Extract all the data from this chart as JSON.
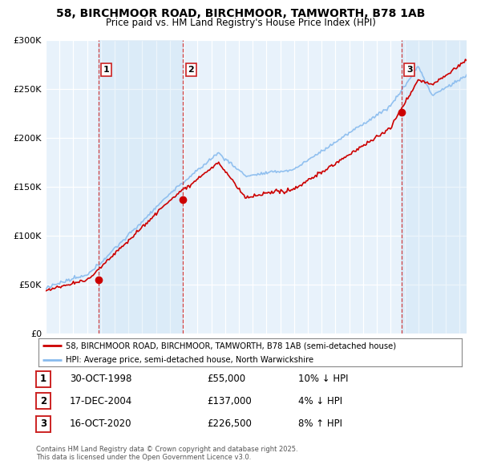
{
  "title": "58, BIRCHMOOR ROAD, BIRCHMOOR, TAMWORTH, B78 1AB",
  "subtitle": "Price paid vs. HM Land Registry's House Price Index (HPI)",
  "legend_line1": "58, BIRCHMOOR ROAD, BIRCHMOOR, TAMWORTH, B78 1AB (semi-detached house)",
  "legend_line2": "HPI: Average price, semi-detached house, North Warwickshire",
  "footer": "Contains HM Land Registry data © Crown copyright and database right 2025.\nThis data is licensed under the Open Government Licence v3.0.",
  "price_color": "#cc0000",
  "hpi_color": "#88bbee",
  "hpi_fill_color": "#cce0f5",
  "background_color": "#e8f2fb",
  "vline_color": "#cc2222",
  "purchases": [
    {
      "label": "1",
      "date_num": 1998.83,
      "price": 55000,
      "pct": "10%",
      "direction": "↓",
      "date_str": "30-OCT-1998"
    },
    {
      "label": "2",
      "date_num": 2004.96,
      "price": 137000,
      "pct": "4%",
      "direction": "↓",
      "date_str": "17-DEC-2004"
    },
    {
      "label": "3",
      "date_num": 2020.79,
      "price": 226500,
      "pct": "8%",
      "direction": "↑",
      "date_str": "16-OCT-2020"
    }
  ],
  "ylim": [
    0,
    300000
  ],
  "xlim": [
    1995.0,
    2025.5
  ],
  "yticks": [
    0,
    50000,
    100000,
    150000,
    200000,
    250000,
    300000
  ],
  "ytick_labels": [
    "£0",
    "£50K",
    "£100K",
    "£150K",
    "£200K",
    "£250K",
    "£300K"
  ]
}
